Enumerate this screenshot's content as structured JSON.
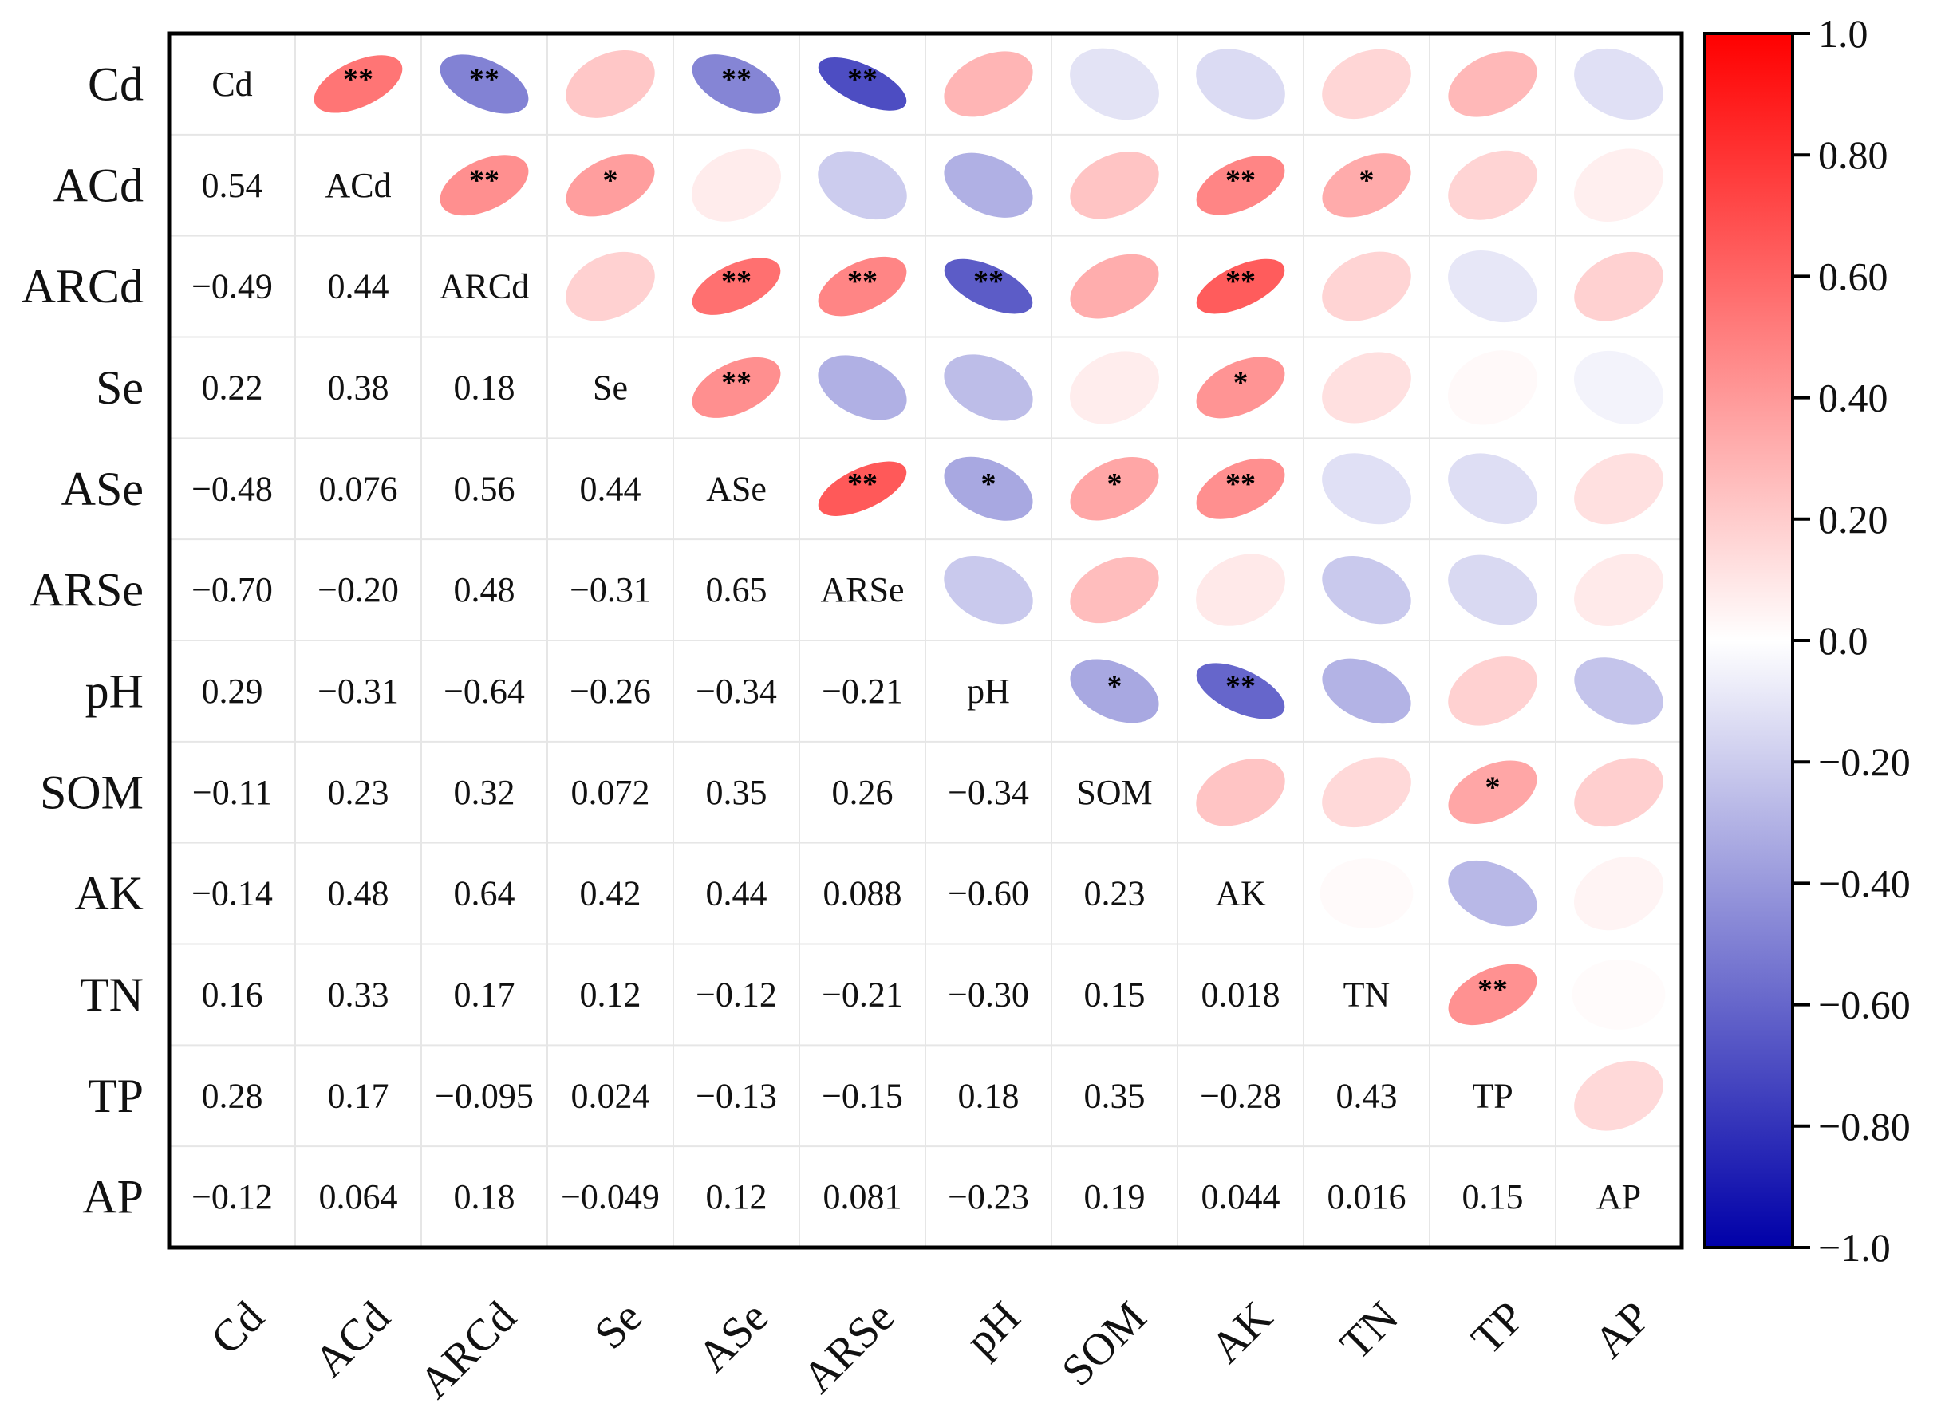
{
  "chart_data": {
    "type": "heatmap",
    "title": "",
    "variables": [
      "Cd",
      "ACd",
      "ARCd",
      "Se",
      "ASe",
      "ARSe",
      "pH",
      "SOM",
      "AK",
      "TN",
      "TP",
      "AP"
    ],
    "lower_labels": [
      [],
      [
        "0.54"
      ],
      [
        "−0.49",
        "0.44"
      ],
      [
        "0.22",
        "0.38",
        "0.18"
      ],
      [
        "−0.48",
        "0.076",
        "0.56",
        "0.44"
      ],
      [
        "−0.70",
        "−0.20",
        "0.48",
        "−0.31",
        "0.65"
      ],
      [
        "0.29",
        "−0.31",
        "−0.64",
        "−0.26",
        "−0.34",
        "−0.21"
      ],
      [
        "−0.11",
        "0.23",
        "0.32",
        "0.072",
        "0.35",
        "0.26",
        "−0.34"
      ],
      [
        "−0.14",
        "0.48",
        "0.64",
        "0.42",
        "0.44",
        "0.088",
        "−0.60",
        "0.23"
      ],
      [
        "0.16",
        "0.33",
        "0.17",
        "0.12",
        "−0.12",
        "−0.21",
        "−0.30",
        "0.15",
        "0.018"
      ],
      [
        "0.28",
        "0.17",
        "−0.095",
        "0.024",
        "−0.13",
        "−0.15",
        "0.18",
        "0.35",
        "−0.28",
        "0.43"
      ],
      [
        "−0.12",
        "0.064",
        "0.18",
        "−0.049",
        "0.12",
        "0.081",
        "−0.23",
        "0.19",
        "0.044",
        "0.016",
        "0.15"
      ]
    ],
    "significance": [
      [
        "",
        "**",
        "**",
        "",
        "**",
        "**",
        "",
        "",
        "",
        "",
        "",
        ""
      ],
      [
        "",
        "",
        "**",
        "*",
        "",
        "",
        "",
        "",
        "**",
        "*",
        "",
        ""
      ],
      [
        "",
        "",
        "",
        "",
        "**",
        "**",
        "**",
        "",
        "**",
        "",
        "",
        ""
      ],
      [
        "",
        "",
        "",
        "",
        "**",
        "",
        "",
        "",
        "*",
        "",
        "",
        ""
      ],
      [
        "",
        "",
        "",
        "",
        "",
        "**",
        "*",
        "*",
        "**",
        "",
        "",
        ""
      ],
      [
        "",
        "",
        "",
        "",
        "",
        "",
        "",
        "",
        "",
        "",
        "",
        ""
      ],
      [
        "",
        "",
        "",
        "",
        "",
        "",
        "",
        "*",
        "**",
        "",
        "",
        ""
      ],
      [
        "",
        "",
        "",
        "",
        "",
        "",
        "",
        "",
        "",
        "",
        "*",
        ""
      ],
      [
        "",
        "",
        "",
        "",
        "",
        "",
        "",
        "",
        "",
        "",
        "",
        ""
      ],
      [
        "",
        "",
        "",
        "",
        "",
        "",
        "",
        "",
        "",
        "",
        "**",
        ""
      ],
      [
        "",
        "",
        "",
        "",
        "",
        "",
        "",
        "",
        "",
        "",
        "",
        ""
      ],
      [
        "",
        "",
        "",
        "",
        "",
        "",
        "",
        "",
        "",
        "",
        "",
        ""
      ]
    ],
    "colorbar": {
      "min": -1.0,
      "max": 1.0,
      "tick_values": [
        1.0,
        0.8,
        0.6,
        0.4,
        0.2,
        0.0,
        -0.2,
        -0.4,
        -0.6,
        -0.8,
        -1.0
      ],
      "tick_labels": [
        "1.0",
        "0.80",
        "0.60",
        "0.40",
        "0.20",
        "0.0",
        "−0.20",
        "−0.40",
        "−0.60",
        "−0.80",
        "−1.0"
      ],
      "colors": {
        "low": "#0000a8",
        "mid": "#ffffff",
        "high": "#ff0000"
      }
    }
  }
}
